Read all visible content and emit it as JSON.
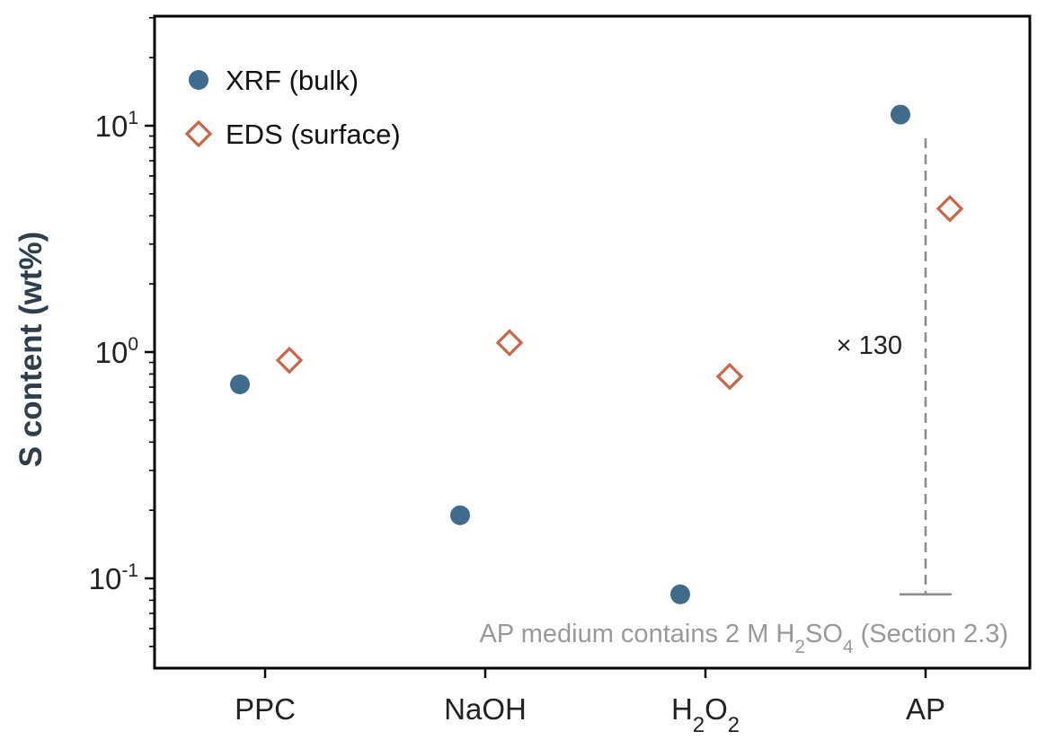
{
  "chart_data": {
    "type": "scatter",
    "title": "",
    "xlabel": "",
    "ylabel": "S content (wt%)",
    "yscale": "log",
    "ylim": [
      0.042,
      30
    ],
    "grid": false,
    "legend_placement": "top-left",
    "categories": [
      "PPC",
      "NaOH",
      "H2O2",
      "AP"
    ],
    "category_tick_labels": [
      {
        "text": "PPC"
      },
      {
        "text": "NaOH"
      },
      {
        "parts": [
          [
            "H",
            ""
          ],
          [
            "2",
            "sub"
          ],
          [
            "O",
            ""
          ],
          [
            "2",
            "sub"
          ]
        ]
      },
      {
        "text": "AP"
      }
    ],
    "y_ticks": [
      {
        "value": 0.1,
        "base": "10",
        "exp": "-1"
      },
      {
        "value": 1,
        "base": "10",
        "exp": "0"
      },
      {
        "value": 10,
        "base": "10",
        "exp": "1"
      }
    ],
    "series": [
      {
        "name": "XRF (bulk)",
        "marker": "circle",
        "color": "#3f6c8c",
        "values": [
          0.72,
          0.19,
          0.085,
          11.2
        ]
      },
      {
        "name": "EDS (surface)",
        "marker": "diamond-open",
        "color": "#c8664a",
        "values": [
          0.92,
          1.1,
          0.78,
          4.3
        ]
      }
    ],
    "annotations": {
      "ratio_text": "× 130",
      "ratio_bracket": {
        "category": "AP",
        "from": 0.085,
        "to": 8.8,
        "color": "#8c8c8c"
      },
      "footnote_parts": [
        [
          "AP medium contains 2 M H",
          ""
        ],
        [
          "2",
          "sub"
        ],
        [
          "SO",
          ""
        ],
        [
          "4",
          "sub"
        ],
        [
          " (Section 2.3)",
          ""
        ]
      ],
      "footnote_color": "#999999"
    }
  }
}
